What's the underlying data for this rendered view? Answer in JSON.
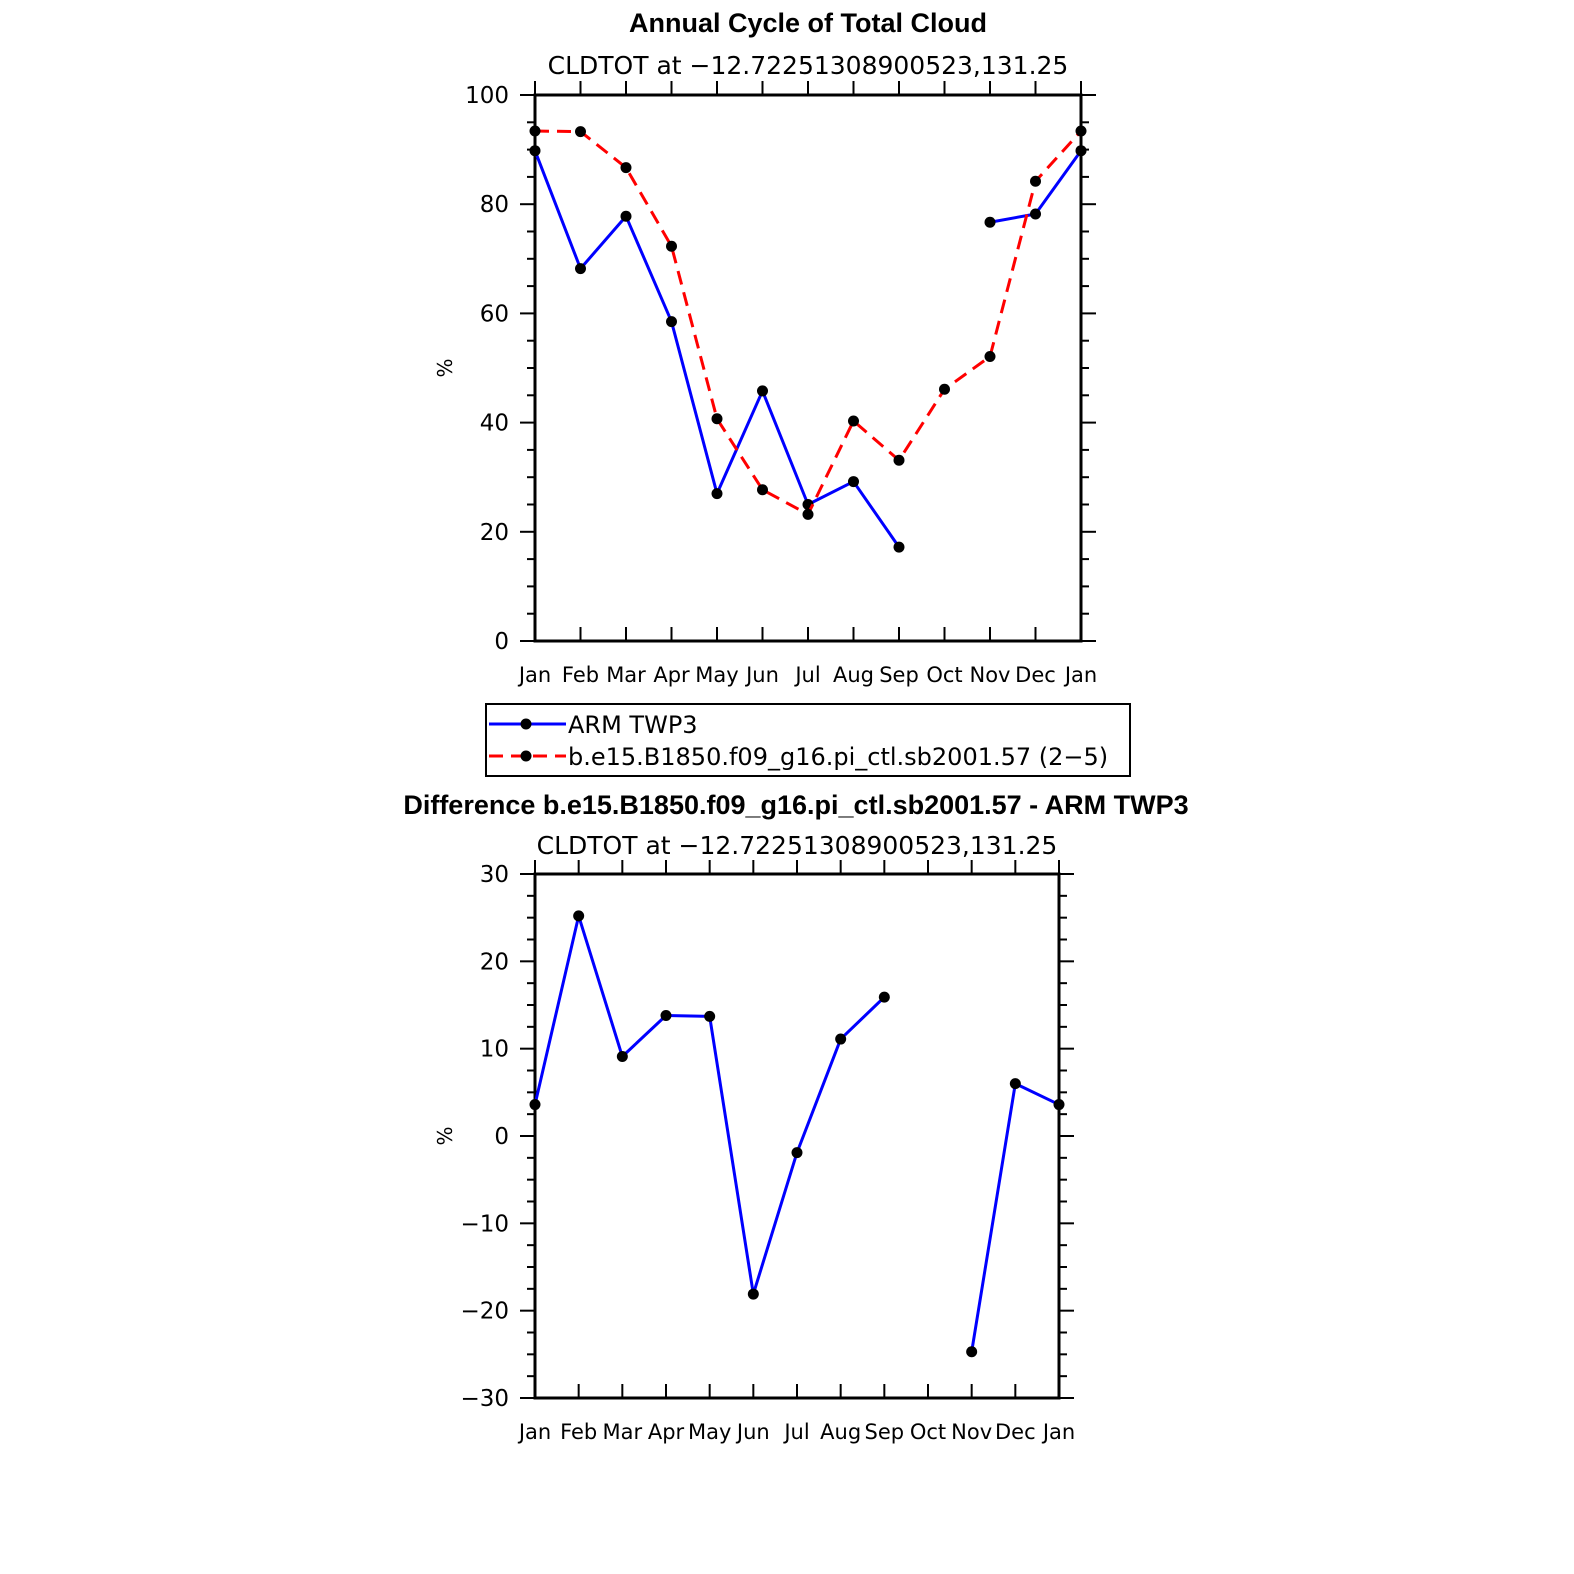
{
  "chart_data": [
    {
      "type": "line",
      "title": "Annual Cycle of Total Cloud",
      "subtitle": "CLDTOT at −12.72251308900523,131.25",
      "xlabel": "",
      "ylabel": "%",
      "ylim": [
        0,
        100
      ],
      "yticks": [
        "0",
        "20",
        "40",
        "60",
        "80",
        "100"
      ],
      "categories": [
        "Jan",
        "Feb",
        "Mar",
        "Apr",
        "May",
        "Jun",
        "Jul",
        "Aug",
        "Sep",
        "Oct",
        "Nov",
        "Dec",
        "Jan"
      ],
      "grid": false,
      "series": [
        {
          "name": "ARM TWP3",
          "color": "#0000ff",
          "dash": "solid",
          "values": [
            89.8,
            68.2,
            77.8,
            58.5,
            27.0,
            45.8,
            25.0,
            29.2,
            17.2,
            null,
            76.7,
            78.2,
            89.8
          ]
        },
        {
          "name": "b.e15.B1850.f09_g16.pi_ctl.sb2001.57 (2−5)",
          "color": "#ff0000",
          "dash": "dashed",
          "values": [
            93.4,
            93.3,
            86.7,
            72.3,
            40.7,
            27.7,
            23.2,
            40.3,
            33.1,
            46.1,
            52.1,
            84.2,
            93.4
          ]
        }
      ],
      "legend": {
        "placement": "below",
        "entries": [
          "ARM TWP3",
          "b.e15.B1850.f09_g16.pi_ctl.sb2001.57 (2−5)"
        ]
      }
    },
    {
      "type": "line",
      "title": "Difference b.e15.B1850.f09_g16.pi_ctl.sb2001.57 - ARM TWP3",
      "subtitle": "CLDTOT at −12.72251308900523,131.25",
      "xlabel": "",
      "ylabel": "%",
      "ylim": [
        -30,
        30
      ],
      "yticks": [
        "−30",
        "−20",
        "−10",
        "0",
        "10",
        "20",
        "30"
      ],
      "categories": [
        "Jan",
        "Feb",
        "Mar",
        "Apr",
        "May",
        "Jun",
        "Jul",
        "Aug",
        "Sep",
        "Oct",
        "Nov",
        "Dec",
        "Jan"
      ],
      "grid": false,
      "series": [
        {
          "name": "Difference",
          "color": "#0000ff",
          "dash": "solid",
          "values": [
            3.6,
            25.2,
            9.1,
            13.8,
            13.7,
            -18.1,
            -1.9,
            11.1,
            15.9,
            null,
            -24.7,
            6.0,
            3.6
          ]
        }
      ]
    }
  ]
}
